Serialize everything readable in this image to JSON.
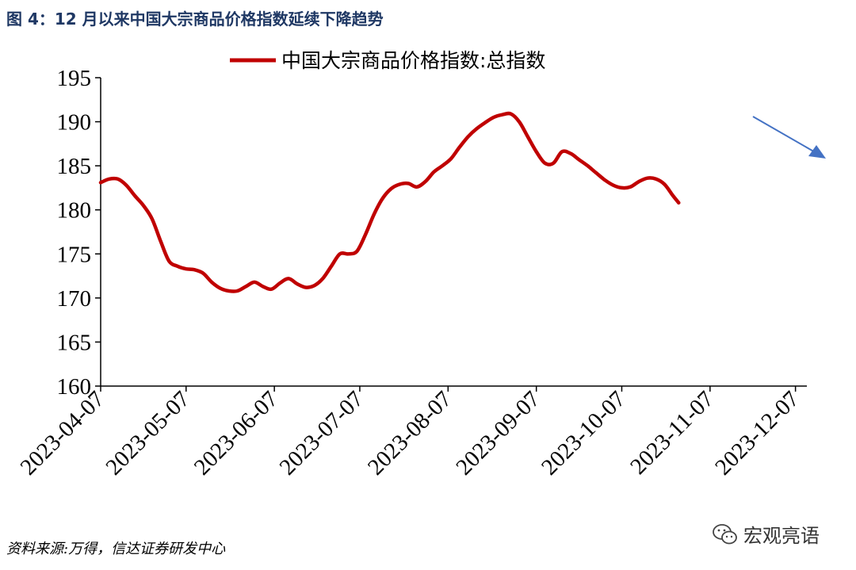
{
  "figure": {
    "title": "图 4：12 月以来中国大宗商品价格指数延续下降趋势",
    "source": "资料来源:万得，信达证券研发中心",
    "watermark": "宏观亮语"
  },
  "colors": {
    "series": "#c00000",
    "arrow": "#4472c4",
    "title": "#1f3864"
  },
  "chart_data": {
    "type": "line",
    "title": "",
    "xlabel": "",
    "ylabel": "",
    "ylim": [
      160,
      195
    ],
    "yticks": [
      160,
      165,
      170,
      175,
      180,
      185,
      190,
      195
    ],
    "xlim": [
      "2023-04-07",
      "2023-12-11"
    ],
    "xticks": [
      "2023-04-07",
      "2023-05-07",
      "2023-06-07",
      "2023-07-07",
      "2023-08-07",
      "2023-09-07",
      "2023-10-07",
      "2023-11-07",
      "2023-12-07"
    ],
    "legend": {
      "position": "top-center"
    },
    "grid": false,
    "annotations": [
      {
        "type": "arrow",
        "meaning": "downward trend",
        "color": "#4472c4"
      }
    ],
    "series": [
      {
        "name": "中国大宗商品价格指数:总指数",
        "color": "#c00000",
        "points": [
          [
            "2023-04-07",
            183.1
          ],
          [
            "2023-04-10",
            183.5
          ],
          [
            "2023-04-13",
            183.5
          ],
          [
            "2023-04-16",
            182.8
          ],
          [
            "2023-04-19",
            181.6
          ],
          [
            "2023-04-22",
            180.5
          ],
          [
            "2023-04-25",
            179.0
          ],
          [
            "2023-04-28",
            176.5
          ],
          [
            "2023-05-01",
            174.2
          ],
          [
            "2023-05-04",
            173.6
          ],
          [
            "2023-05-07",
            173.3
          ],
          [
            "2023-05-10",
            173.2
          ],
          [
            "2023-05-13",
            172.8
          ],
          [
            "2023-05-16",
            171.8
          ],
          [
            "2023-05-19",
            171.1
          ],
          [
            "2023-05-22",
            170.8
          ],
          [
            "2023-05-25",
            170.8
          ],
          [
            "2023-05-28",
            171.3
          ],
          [
            "2023-05-31",
            171.8
          ],
          [
            "2023-06-03",
            171.3
          ],
          [
            "2023-06-06",
            171.0
          ],
          [
            "2023-06-09",
            171.7
          ],
          [
            "2023-06-12",
            172.2
          ],
          [
            "2023-06-15",
            171.6
          ],
          [
            "2023-06-18",
            171.2
          ],
          [
            "2023-06-21",
            171.4
          ],
          [
            "2023-06-24",
            172.2
          ],
          [
            "2023-06-27",
            173.6
          ],
          [
            "2023-06-30",
            175.0
          ],
          [
            "2023-07-03",
            175.0
          ],
          [
            "2023-07-06",
            175.3
          ],
          [
            "2023-07-09",
            177.2
          ],
          [
            "2023-07-12",
            179.5
          ],
          [
            "2023-07-15",
            181.3
          ],
          [
            "2023-07-18",
            182.4
          ],
          [
            "2023-07-21",
            182.9
          ],
          [
            "2023-07-24",
            183.0
          ],
          [
            "2023-07-27",
            182.6
          ],
          [
            "2023-07-30",
            183.2
          ],
          [
            "2023-08-02",
            184.3
          ],
          [
            "2023-08-05",
            185.0
          ],
          [
            "2023-08-08",
            185.8
          ],
          [
            "2023-08-11",
            187.1
          ],
          [
            "2023-08-14",
            188.3
          ],
          [
            "2023-08-17",
            189.2
          ],
          [
            "2023-08-20",
            189.9
          ],
          [
            "2023-08-23",
            190.5
          ],
          [
            "2023-08-26",
            190.8
          ],
          [
            "2023-08-29",
            190.9
          ],
          [
            "2023-09-01",
            190.0
          ],
          [
            "2023-09-04",
            188.3
          ],
          [
            "2023-09-07",
            186.6
          ],
          [
            "2023-09-10",
            185.3
          ],
          [
            "2023-09-13",
            185.3
          ],
          [
            "2023-09-16",
            186.6
          ],
          [
            "2023-09-19",
            186.4
          ],
          [
            "2023-09-22",
            185.7
          ],
          [
            "2023-09-25",
            185.0
          ],
          [
            "2023-09-28",
            184.2
          ],
          [
            "2023-10-01",
            183.4
          ],
          [
            "2023-10-04",
            182.8
          ],
          [
            "2023-10-07",
            182.5
          ],
          [
            "2023-10-10",
            182.6
          ],
          [
            "2023-10-13",
            183.2
          ],
          [
            "2023-10-16",
            183.6
          ],
          [
            "2023-10-19",
            183.5
          ],
          [
            "2023-10-22",
            182.9
          ],
          [
            "2023-10-25",
            181.6
          ],
          [
            "2023-10-27",
            180.8
          ]
        ]
      }
    ]
  }
}
